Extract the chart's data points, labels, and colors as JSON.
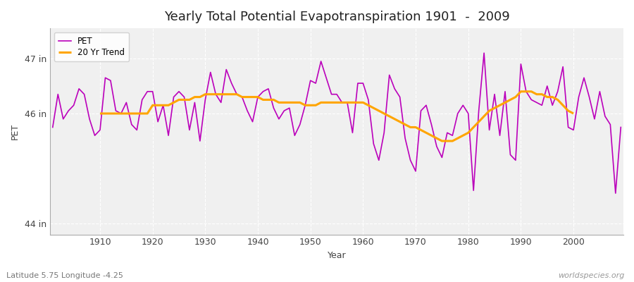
{
  "title": "Yearly Total Potential Evapotranspiration 1901  -  2009",
  "xlabel": "Year",
  "ylabel": "PET",
  "legend_pet": "PET",
  "legend_trend": "20 Yr Trend",
  "pet_color": "#bb00bb",
  "trend_color": "#ffa500",
  "fig_bg_color": "#ffffff",
  "plot_bg_color": "#f0f0f0",
  "grid_color": "#ffffff",
  "ylim_min": 43.8,
  "ylim_max": 47.55,
  "years": [
    1901,
    1902,
    1903,
    1904,
    1905,
    1906,
    1907,
    1908,
    1909,
    1910,
    1911,
    1912,
    1913,
    1914,
    1915,
    1916,
    1917,
    1918,
    1919,
    1920,
    1921,
    1922,
    1923,
    1924,
    1925,
    1926,
    1927,
    1928,
    1929,
    1930,
    1931,
    1932,
    1933,
    1934,
    1935,
    1936,
    1937,
    1938,
    1939,
    1940,
    1941,
    1942,
    1943,
    1944,
    1945,
    1946,
    1947,
    1948,
    1949,
    1950,
    1951,
    1952,
    1953,
    1954,
    1955,
    1956,
    1957,
    1958,
    1959,
    1960,
    1961,
    1962,
    1963,
    1964,
    1965,
    1966,
    1967,
    1968,
    1969,
    1970,
    1971,
    1972,
    1973,
    1974,
    1975,
    1976,
    1977,
    1978,
    1979,
    1980,
    1981,
    1982,
    1983,
    1984,
    1985,
    1986,
    1987,
    1988,
    1989,
    1990,
    1991,
    1992,
    1993,
    1994,
    1995,
    1996,
    1997,
    1998,
    1999,
    2000,
    2001,
    2002,
    2003,
    2004,
    2005,
    2006,
    2007,
    2008,
    2009
  ],
  "pet_values": [
    45.75,
    46.35,
    45.9,
    46.05,
    46.15,
    46.45,
    46.35,
    45.9,
    45.6,
    45.7,
    46.65,
    46.6,
    46.05,
    46.0,
    46.2,
    45.8,
    45.7,
    46.25,
    46.4,
    46.4,
    45.85,
    46.15,
    45.6,
    46.3,
    46.4,
    46.3,
    45.7,
    46.2,
    45.5,
    46.25,
    46.75,
    46.35,
    46.2,
    46.8,
    46.55,
    46.35,
    46.3,
    46.05,
    45.85,
    46.3,
    46.4,
    46.45,
    46.1,
    45.9,
    46.05,
    46.1,
    45.6,
    45.8,
    46.15,
    46.6,
    46.55,
    46.95,
    46.65,
    46.35,
    46.35,
    46.2,
    46.2,
    45.65,
    46.55,
    46.55,
    46.25,
    45.45,
    45.15,
    45.65,
    46.7,
    46.45,
    46.3,
    45.55,
    45.15,
    44.95,
    46.05,
    46.15,
    45.8,
    45.4,
    45.2,
    45.65,
    45.6,
    46.0,
    46.15,
    46.0,
    44.6,
    46.05,
    47.1,
    45.7,
    46.35,
    45.6,
    46.4,
    45.25,
    45.15,
    46.9,
    46.4,
    46.25,
    46.2,
    46.15,
    46.5,
    46.15,
    46.4,
    46.85,
    45.75,
    45.7,
    46.3,
    46.65,
    46.3,
    45.9,
    46.4,
    45.95,
    45.8,
    44.55,
    45.75
  ],
  "trend_values": [
    null,
    null,
    null,
    null,
    null,
    null,
    null,
    null,
    null,
    46.0,
    46.0,
    46.0,
    46.0,
    46.0,
    46.0,
    46.0,
    46.0,
    46.0,
    46.0,
    46.15,
    46.15,
    46.15,
    46.15,
    46.2,
    46.25,
    46.25,
    46.25,
    46.3,
    46.3,
    46.35,
    46.35,
    46.35,
    46.35,
    46.35,
    46.35,
    46.35,
    46.3,
    46.3,
    46.3,
    46.3,
    46.25,
    46.25,
    46.25,
    46.2,
    46.2,
    46.2,
    46.2,
    46.2,
    46.15,
    46.15,
    46.15,
    46.2,
    46.2,
    46.2,
    46.2,
    46.2,
    46.2,
    46.2,
    46.2,
    46.2,
    46.15,
    46.1,
    46.05,
    46.0,
    45.95,
    45.9,
    45.85,
    45.8,
    45.75,
    45.75,
    45.7,
    45.65,
    45.6,
    45.55,
    45.5,
    45.5,
    45.5,
    45.55,
    45.6,
    45.65,
    45.75,
    45.85,
    45.95,
    46.05,
    46.1,
    46.15,
    46.2,
    46.25,
    46.3,
    46.4,
    46.4,
    46.4,
    46.35,
    46.35,
    46.3,
    46.3,
    46.25,
    46.15,
    46.05,
    46.0,
    null,
    null,
    null,
    null,
    null,
    null,
    null,
    null,
    null
  ],
  "watermark": "worldspecies.org",
  "sublabel": "Latitude 5.75 Longitude -4.25",
  "xticks": [
    1910,
    1920,
    1930,
    1940,
    1950,
    1960,
    1970,
    1980,
    1990,
    2000
  ],
  "yticks": [
    44,
    46,
    47
  ],
  "title_fontsize": 13,
  "axis_label_fontsize": 9,
  "tick_fontsize": 9
}
